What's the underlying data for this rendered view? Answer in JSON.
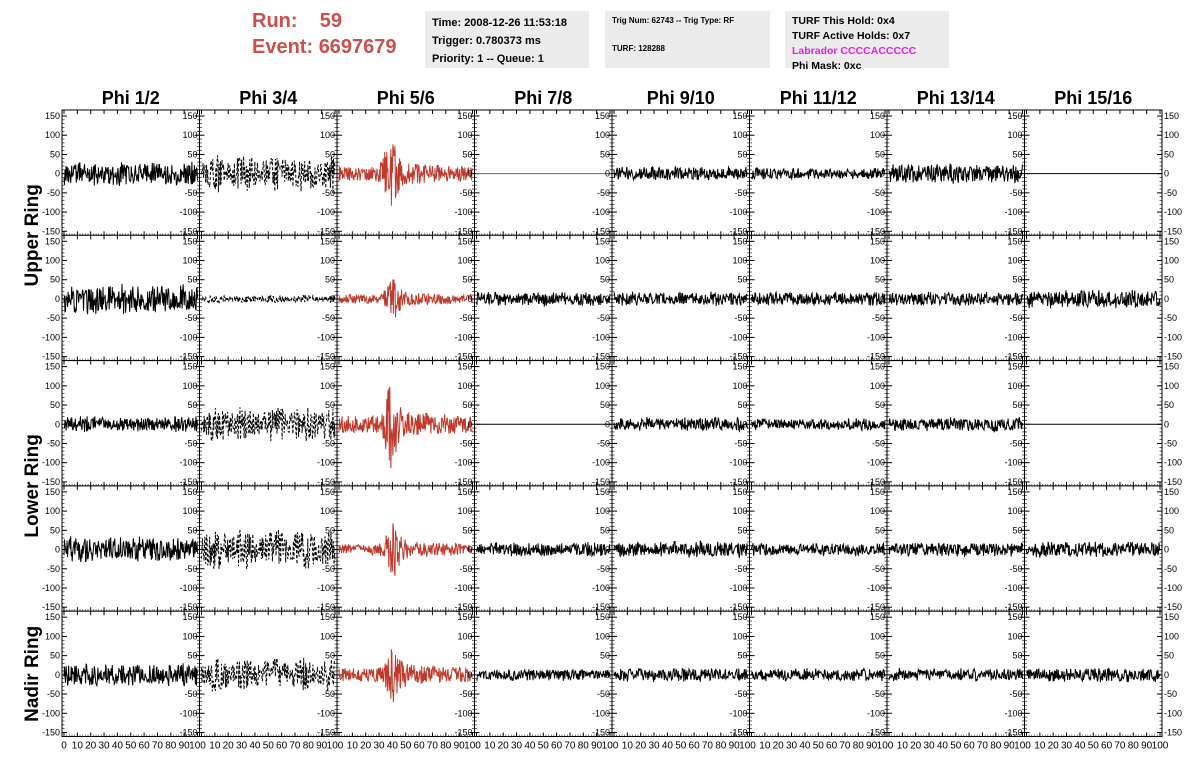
{
  "header": {
    "run_label": "Run:",
    "run_value": "59",
    "event_label": "Event:",
    "event_value": "6697679"
  },
  "info_box_1": {
    "time": "Time: 2008-12-26 11:53:18",
    "trigger": "Trigger: 0.780373 ms",
    "priority": "Priority: 1 -- Queue: 1"
  },
  "info_box_2": {
    "trig": "Trig Num: 62743 -- Trig Type: RF",
    "turf": "TURF: 128288"
  },
  "info_box_3": {
    "hold": "TURF This Hold: 0x4",
    "active": "TURF Active Holds: 0x7",
    "labrador": "Labrador CCCCACCCCC",
    "phi_mask": "Phi Mask: 0xc"
  },
  "colors": {
    "red_trace": "#c0392b",
    "green_trace": "#2e8b2e",
    "header_red": "#c9504d",
    "labrador_magenta": "#e020e0",
    "info_bg": "#ececec"
  },
  "chart_data": {
    "type": "line",
    "columns": [
      "Phi 1/2",
      "Phi 3/4",
      "Phi 5/6",
      "Phi 7/8",
      "Phi 9/10",
      "Phi 11/12",
      "Phi 13/14",
      "Phi 15/16"
    ],
    "rings": [
      "Upper Ring",
      "Lower Ring",
      "Nadir Ring"
    ],
    "ring_spans_rows": [
      [
        0,
        1
      ],
      [
        2,
        3
      ],
      [
        4,
        4
      ]
    ],
    "ylim": [
      -150,
      150
    ],
    "xlim": [
      0,
      100
    ],
    "y_tick_labels": [
      "150",
      "100",
      "50",
      "0",
      "-50",
      "-100",
      "-150"
    ],
    "x_tick_labels_leftmost": [
      "0",
      "10",
      "20",
      "30",
      "40",
      "50",
      "60",
      "70",
      "80",
      "90",
      "100"
    ],
    "x_tick_labels_other": [
      "10",
      "20",
      "30",
      "40",
      "50",
      "60",
      "70",
      "80",
      "90",
      "100"
    ],
    "panels": [
      [
        {
          "style": "solid",
          "color": "black",
          "amp": 38
        },
        {
          "style": "dashed",
          "color": "black",
          "amp": 55
        },
        {
          "style": "solid",
          "color": "red",
          "amp": 60,
          "pulse": 38
        },
        {
          "style": "flat",
          "color": "green",
          "amp": 0
        },
        {
          "style": "solid",
          "color": "black",
          "amp": 22
        },
        {
          "style": "solid",
          "color": "black",
          "amp": 18
        },
        {
          "style": "solid",
          "color": "black",
          "amp": 30
        },
        {
          "style": "flat",
          "color": "black",
          "amp": 0
        }
      ],
      [
        {
          "style": "solid",
          "color": "black",
          "amp": 45
        },
        {
          "style": "dashed",
          "color": "black",
          "amp": 12
        },
        {
          "style": "solid",
          "color": "red",
          "amp": 35,
          "pulse": 40
        },
        {
          "style": "solid",
          "color": "black",
          "amp": 22
        },
        {
          "style": "solid",
          "color": "black",
          "amp": 22
        },
        {
          "style": "solid",
          "color": "black",
          "amp": 22
        },
        {
          "style": "solid",
          "color": "black",
          "amp": 22
        },
        {
          "style": "solid",
          "color": "black",
          "amp": 28
        }
      ],
      [
        {
          "style": "solid",
          "color": "black",
          "amp": 25
        },
        {
          "style": "dashed",
          "color": "black",
          "amp": 55
        },
        {
          "style": "solid",
          "color": "red",
          "amp": 70,
          "pulse": 38
        },
        {
          "style": "flat",
          "color": "black",
          "amp": 0
        },
        {
          "style": "solid",
          "color": "black",
          "amp": 22
        },
        {
          "style": "solid",
          "color": "black",
          "amp": 18
        },
        {
          "style": "solid",
          "color": "black",
          "amp": 22
        },
        {
          "style": "flat",
          "color": "black",
          "amp": 0
        }
      ],
      [
        {
          "style": "solid",
          "color": "black",
          "amp": 40
        },
        {
          "style": "dashed",
          "color": "black",
          "amp": 60
        },
        {
          "style": "solid",
          "color": "red",
          "amp": 45,
          "pulse": 40
        },
        {
          "style": "solid",
          "color": "black",
          "amp": 22
        },
        {
          "style": "solid",
          "color": "black",
          "amp": 25
        },
        {
          "style": "solid",
          "color": "black",
          "amp": 20
        },
        {
          "style": "solid",
          "color": "black",
          "amp": 22
        },
        {
          "style": "solid",
          "color": "black",
          "amp": 25
        }
      ],
      [
        {
          "style": "solid",
          "color": "black",
          "amp": 35
        },
        {
          "style": "dashed",
          "color": "black",
          "amp": 50
        },
        {
          "style": "solid",
          "color": "red",
          "amp": 55,
          "pulse": 40
        },
        {
          "style": "solid",
          "color": "black",
          "amp": 18
        },
        {
          "style": "solid",
          "color": "black",
          "amp": 22
        },
        {
          "style": "solid",
          "color": "black",
          "amp": 20
        },
        {
          "style": "solid",
          "color": "black",
          "amp": 20
        },
        {
          "style": "solid",
          "color": "black",
          "amp": 22
        }
      ]
    ]
  }
}
